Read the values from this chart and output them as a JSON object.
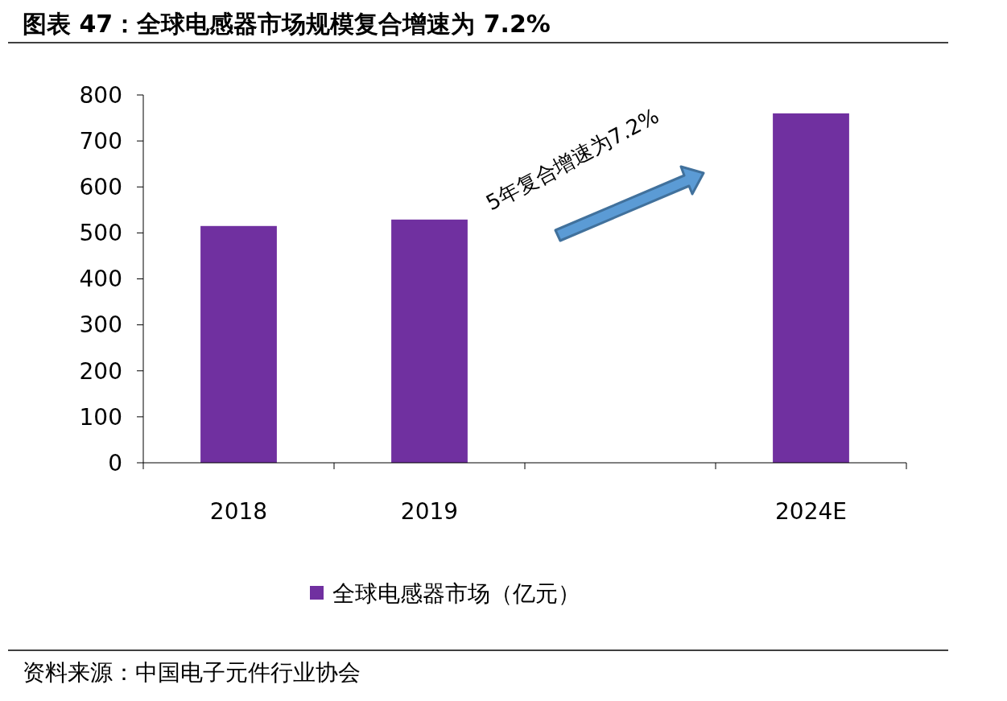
{
  "chart_data": {
    "type": "bar",
    "title": "图表 47：全球电感器市场规模复合增速为 7.2%",
    "categories": [
      "2018",
      "2019",
      null,
      "2024E"
    ],
    "series": [
      {
        "name": "全球电感器市场（亿元）",
        "color": "#7030a0",
        "values": [
          515,
          529,
          null,
          760
        ]
      }
    ],
    "ylim": [
      0,
      800
    ],
    "yticks": [
      0,
      100,
      200,
      300,
      400,
      500,
      600,
      700,
      800
    ],
    "grid": false,
    "legend": "bottom",
    "annotations": [
      "5年复合增速为7.2%",
      "资料来源：中国电子元件行业协会"
    ]
  }
}
